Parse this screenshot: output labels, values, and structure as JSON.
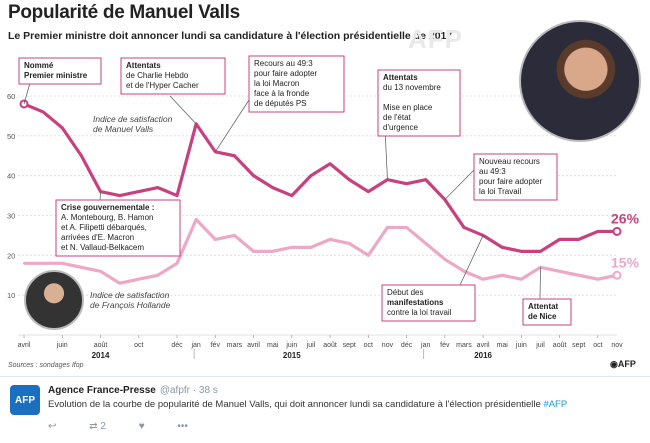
{
  "header": {
    "title": "Popularité de Manuel Valls",
    "subtitle": "Le Premier ministre doit annoncer lundi sa candidature à l'élection présidentielle de 2017",
    "watermark": "AFP"
  },
  "chart_data": {
    "type": "line",
    "ylim": [
      0,
      60
    ],
    "yticks": [
      0,
      10,
      20,
      30,
      40,
      50,
      60
    ],
    "x_tick_labels": [
      {
        "month": 0,
        "label": "avril"
      },
      {
        "month": 2,
        "label": "juin"
      },
      {
        "month": 4,
        "label": "août"
      },
      {
        "month": 6,
        "label": "oct"
      },
      {
        "month": 8,
        "label": "déc"
      },
      {
        "month": 10,
        "label": "fév"
      },
      {
        "month": 12,
        "label": "avril"
      },
      {
        "month": 14,
        "label": "juin"
      },
      {
        "month": 16,
        "label": "août"
      },
      {
        "month": 18,
        "label": "oct"
      },
      {
        "month": 20,
        "label": "déc"
      },
      {
        "month": 22,
        "label": "fév"
      },
      {
        "month": 24,
        "label": "avril"
      },
      {
        "month": 26,
        "label": "juin"
      },
      {
        "month": 28,
        "label": "août"
      },
      {
        "month": 30,
        "label": "oct"
      }
    ],
    "x_tick_labels_row2": [
      {
        "month": 9,
        "label": "jan"
      },
      {
        "month": 11,
        "label": "mars"
      },
      {
        "month": 13,
        "label": "mai"
      },
      {
        "month": 15,
        "label": "juil"
      },
      {
        "month": 17,
        "label": "sept"
      },
      {
        "month": 19,
        "label": "nov"
      },
      {
        "month": 21,
        "label": "jan"
      },
      {
        "month": 23,
        "label": "mars"
      },
      {
        "month": 25,
        "label": "mai"
      },
      {
        "month": 27,
        "label": "juil"
      },
      {
        "month": 29,
        "label": "sept"
      },
      {
        "month": 31,
        "label": "nov"
      }
    ],
    "years": [
      {
        "month": 4,
        "label": "2014"
      },
      {
        "month": 14,
        "label": "2015"
      },
      {
        "month": 24,
        "label": "2016"
      }
    ],
    "series": [
      {
        "key": "valls",
        "color": "#c8417e",
        "x": [
          0,
          1,
          2,
          3,
          4,
          5,
          6,
          7,
          8,
          9,
          10,
          11,
          12,
          13,
          14,
          15,
          16,
          17,
          18,
          19,
          20,
          21,
          22,
          23,
          24,
          25,
          26,
          27,
          28,
          29,
          30,
          31
        ],
        "values": [
          58,
          56,
          52,
          45,
          36,
          35,
          36,
          37,
          35,
          53,
          46,
          45,
          40,
          37,
          35,
          40,
          43,
          39,
          36,
          39,
          38,
          39,
          34,
          27,
          25,
          22,
          21,
          21,
          24,
          24,
          26,
          26
        ],
        "end_label": "26%",
        "series_label": "Indice de satisfaction\nde Manuel Valls"
      },
      {
        "key": "hollande",
        "color": "#eea8c7",
        "x": [
          0,
          1,
          2,
          3,
          4,
          5,
          6,
          7,
          8,
          9,
          10,
          11,
          12,
          13,
          14,
          15,
          16,
          17,
          18,
          19,
          20,
          21,
          22,
          23,
          24,
          25,
          26,
          27,
          28,
          29,
          30,
          31
        ],
        "values": [
          18,
          18,
          18,
          17,
          16,
          13,
          14,
          15,
          18,
          29,
          24,
          25,
          21,
          21,
          22,
          22,
          24,
          23,
          20,
          27,
          27,
          23,
          19,
          16,
          14,
          15,
          14,
          17,
          16,
          15,
          14,
          15
        ],
        "end_label": "15%",
        "series_label": "Indice de satisfaction\nde François Hollande"
      }
    ],
    "annotations": [
      {
        "key": "nomme",
        "lines": [
          {
            "t": "Nommé",
            "b": true
          },
          {
            "t": "Premier ministre",
            "b": true
          }
        ]
      },
      {
        "key": "charlie",
        "lines": [
          {
            "t": "Attentats",
            "b": true
          },
          {
            "t": "de Charlie Hebdo",
            "b": false
          },
          {
            "t": "et de l'Hyper Cacher",
            "b": false
          }
        ]
      },
      {
        "key": "493a",
        "lines": [
          {
            "t": "Recours au 49:3",
            "b": false
          },
          {
            "t": "pour faire adopter",
            "b": false
          },
          {
            "t": "la loi Macron",
            "b": false
          },
          {
            "t": "face à la fronde",
            "b": false
          },
          {
            "t": "de députés PS",
            "b": false
          }
        ]
      },
      {
        "key": "nov13",
        "lines": [
          {
            "t": "Attentats",
            "b": true
          },
          {
            "t": "du 13 novembre",
            "b": false
          },
          {
            "t": "",
            "b": false
          },
          {
            "t": "Mise en place",
            "b": false
          },
          {
            "t": "de l'état",
            "b": false
          },
          {
            "t": "d'urgence",
            "b": false
          }
        ]
      },
      {
        "key": "493b",
        "lines": [
          {
            "t": "Nouveau recours",
            "b": false
          },
          {
            "t": "au 49:3",
            "b": false
          },
          {
            "t": "pour faire adopter",
            "b": false
          },
          {
            "t": "la loi Travail",
            "b": false
          }
        ]
      },
      {
        "key": "crise",
        "lines": [
          {
            "t": "Crise gouvernementale :",
            "b": true
          },
          {
            "t": "A. Montebourg, B. Hamon",
            "b": false
          },
          {
            "t": "et A. Filipetti débarqués,",
            "b": false
          },
          {
            "t": "arrivées d'E. Macron",
            "b": false
          },
          {
            "t": "et N. Vallaud-Belkacem",
            "b": false
          }
        ]
      },
      {
        "key": "manif",
        "lines": [
          {
            "t": "Début des",
            "b": false
          },
          {
            "t": "manifestations",
            "b": true
          },
          {
            "t": "contre la loi travail",
            "b": false
          }
        ]
      },
      {
        "key": "nice",
        "lines": [
          {
            "t": "Attentat",
            "b": true
          },
          {
            "t": "de Nice",
            "b": true
          }
        ]
      }
    ]
  },
  "footer": {
    "sources": "Sources : sondages Ifop",
    "logo": "AFP"
  },
  "tweet": {
    "avatar": "AFP",
    "author": "Agence France-Presse",
    "handle": "@afpfr · 38 s",
    "text": "Evolution de la courbe de popularité de Manuel Valls, qui doit annoncer lundi sa candidature à l'élection présidentielle",
    "hashtag": "#AFP",
    "reply_icon": "reply-arrow-icon",
    "retweet_icon": "retweet-icon",
    "retweet_count": "2",
    "like_icon": "heart-icon",
    "more_icon": "more-dots-icon"
  }
}
